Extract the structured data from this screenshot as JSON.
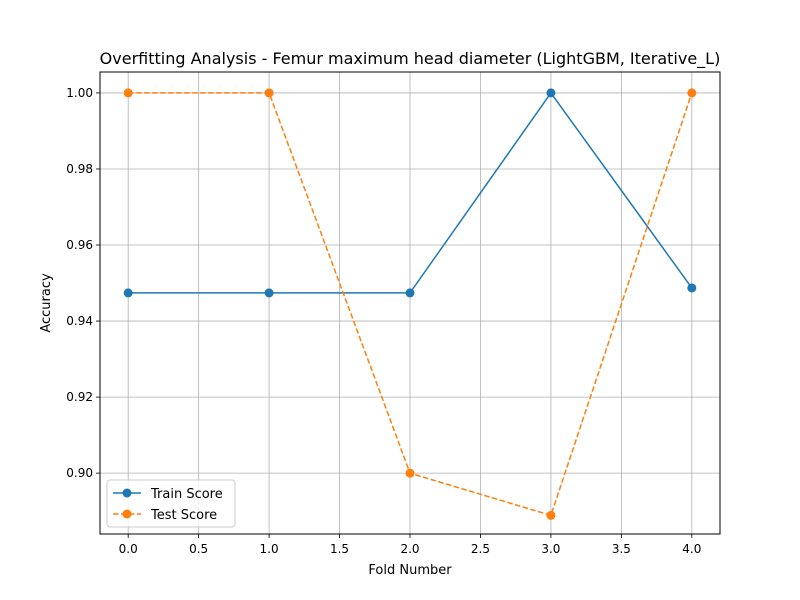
{
  "chart_data": {
    "type": "line",
    "title": "Overfitting Analysis - Femur maximum head diameter (LightGBM, Iterative_L)",
    "xlabel": "Fold Number",
    "ylabel": "Accuracy",
    "x": [
      0,
      1,
      2,
      3,
      4
    ],
    "xlim": [
      -0.2,
      4.2
    ],
    "ylim": [
      0.884,
      1.0055
    ],
    "xticks": [
      "0.0",
      "0.5",
      "1.0",
      "1.5",
      "2.0",
      "2.5",
      "3.0",
      "3.5",
      "4.0"
    ],
    "xtick_values": [
      0,
      0.5,
      1,
      1.5,
      2,
      2.5,
      3,
      3.5,
      4
    ],
    "yticks": [
      "0.90",
      "0.92",
      "0.94",
      "0.96",
      "0.98",
      "1.00"
    ],
    "ytick_values": [
      0.9,
      0.92,
      0.94,
      0.96,
      0.98,
      1.0
    ],
    "grid": true,
    "legend_position": "lower-left",
    "series": [
      {
        "name": "Train Score",
        "values": [
          0.9474,
          0.9474,
          0.9474,
          1.0,
          0.9487
        ],
        "color": "#1f77b4",
        "linestyle": "solid",
        "marker": "circle"
      },
      {
        "name": "Test Score",
        "values": [
          1.0,
          1.0,
          0.9,
          0.8889,
          1.0
        ],
        "color": "#ff7f0e",
        "linestyle": "dashed",
        "marker": "circle"
      }
    ]
  }
}
